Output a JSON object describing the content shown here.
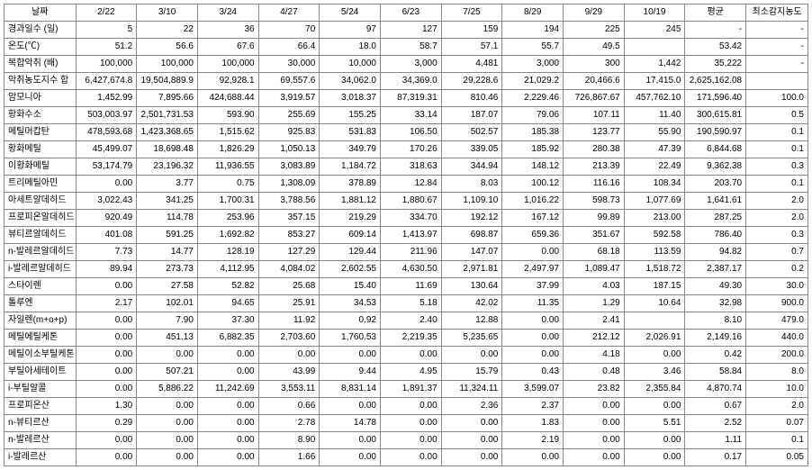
{
  "columns": [
    "날짜",
    "2/22",
    "3/10",
    "3/24",
    "4/27",
    "5/24",
    "6/23",
    "7/25",
    "8/29",
    "9/29",
    "10/19",
    "평균",
    "최소감지농도"
  ],
  "rows": [
    [
      "경과일수 (일)",
      "5",
      "22",
      "36",
      "70",
      "97",
      "127",
      "159",
      "194",
      "225",
      "245",
      "-",
      "-"
    ],
    [
      "온도(℃)",
      "51.2",
      "56.6",
      "67.6",
      "66.4",
      "18.0",
      "58.7",
      "57.1",
      "55.7",
      "49.5",
      "",
      "53.42",
      "-"
    ],
    [
      "복합악취 (배)",
      "100,000",
      "100,000",
      "100,000",
      "30,000",
      "10,000",
      "3,000",
      "4,481",
      "3,000",
      "300",
      "1,442",
      "35,222",
      "-"
    ],
    [
      "악취농도지수 합",
      "6,427,674.8",
      "19,504,889.9",
      "92,928.1",
      "69,557.6",
      "34,062.0",
      "34,369.0",
      "29,228.6",
      "21,029.2",
      "20,466.6",
      "17,415.0",
      "2,625,162.08",
      ""
    ],
    [
      "암모니아",
      "1,452.99",
      "7,895.66",
      "424,688.44",
      "3,919.57",
      "3,018.37",
      "87,319.31",
      "810.46",
      "2,229.46",
      "726,867.67",
      "457,762.10",
      "171,596.40",
      "100.0"
    ],
    [
      "황화수소",
      "503,003.97",
      "2,501,731.53",
      "593.90",
      "255.69",
      "155.25",
      "33.14",
      "187.07",
      "79.06",
      "107.11",
      "11.40",
      "300,615.81",
      "0.5"
    ],
    [
      "메틸머캅탄",
      "478,593.68",
      "1,423,368.65",
      "1,515.62",
      "925.83",
      "531.83",
      "106.50",
      "502.57",
      "185.38",
      "123.77",
      "55.90",
      "190,590.97",
      "0.1"
    ],
    [
      "황화메틸",
      "45,499.07",
      "18,698.48",
      "1,826.29",
      "1,050.13",
      "349.79",
      "170.26",
      "339.05",
      "185.92",
      "280.38",
      "47.39",
      "6,844.68",
      "0.1"
    ],
    [
      "이황화메틸",
      "53,174.79",
      "23,196.32",
      "11,936.55",
      "3,083.89",
      "1,184.72",
      "318.63",
      "344.94",
      "148.12",
      "213.39",
      "22.49",
      "9,362.38",
      "0.3"
    ],
    [
      "트리메틸아민",
      "0.00",
      "3.77",
      "0.75",
      "1,308.09",
      "378.89",
      "12.84",
      "8.03",
      "100.12",
      "116.16",
      "108.34",
      "203.70",
      "0.1"
    ],
    [
      "아세트알데히드",
      "3,022.43",
      "341.25",
      "1,700.31",
      "3,788.56",
      "1,881.12",
      "1,880.67",
      "1,109.10",
      "1,016.22",
      "598.73",
      "1,077.69",
      "1,641.61",
      "2.0"
    ],
    [
      "프로피온알데히드",
      "920.49",
      "114.78",
      "253.96",
      "357.15",
      "219.29",
      "334.70",
      "192.12",
      "167.12",
      "99.89",
      "213.00",
      "287.25",
      "2.0"
    ],
    [
      "뷰티르알데히드",
      "401.08",
      "591.25",
      "1,692.82",
      "853.27",
      "609.14",
      "1,413.97",
      "698.87",
      "659.36",
      "351.67",
      "592.58",
      "786.40",
      "0.3"
    ],
    [
      "n-발레르알데히드",
      "7.73",
      "14.77",
      "128.19",
      "127.29",
      "129.44",
      "211.96",
      "147.07",
      "0.00",
      "68.18",
      "113.59",
      "94.82",
      "0.7"
    ],
    [
      "i-발레르알데히드",
      "89.94",
      "273.73",
      "4,112.95",
      "4,084.02",
      "2,602.55",
      "4,630.50",
      "2,971.81",
      "2,497.97",
      "1,089.47",
      "1,518.72",
      "2,387.17",
      "0.2"
    ],
    [
      "스타이렌",
      "0.00",
      "27.58",
      "52.82",
      "25.68",
      "15.40",
      "11.69",
      "130.64",
      "37.99",
      "4.03",
      "187.15",
      "49.30",
      "30.0"
    ],
    [
      "톨루엔",
      "2.17",
      "102.01",
      "94.65",
      "25.91",
      "34.53",
      "5.18",
      "42.02",
      "11.35",
      "1.29",
      "10.64",
      "32.98",
      "900.0"
    ],
    [
      "자일렌(m+o+p)",
      "0.00",
      "7.90",
      "37.30",
      "11.92",
      "0.92",
      "2.40",
      "12.88",
      "0.00",
      "2.41",
      "",
      "8.10",
      "479.0"
    ],
    [
      "메틸에틸케톤",
      "0.00",
      "451.13",
      "6,882.35",
      "2,703.60",
      "1,760.53",
      "2,219.35",
      "5,235.65",
      "0.00",
      "212.12",
      "2,026.91",
      "2,149.16",
      "440.0"
    ],
    [
      "메틸이소부틸케톤",
      "0.00",
      "0.00",
      "0.00",
      "0.00",
      "0.00",
      "0.00",
      "0.00",
      "0.00",
      "4.18",
      "0.00",
      "0.42",
      "200.0"
    ],
    [
      "부틸아세테이트",
      "0.00",
      "507.21",
      "0.00",
      "43.99",
      "9.44",
      "4.95",
      "15.79",
      "0.43",
      "0.48",
      "3.46",
      "58.84",
      "8.0"
    ],
    [
      "i-부틸알콜",
      "0.00",
      "5,886.22",
      "11,242.69",
      "3,553.11",
      "8,831.14",
      "1,891.37",
      "11,324.11",
      "3,599.07",
      "23.82",
      "2,355.84",
      "4,870.74",
      "10.0"
    ],
    [
      "프로피온산",
      "1.30",
      "0.00",
      "0.00",
      "0.66",
      "0.00",
      "0.00",
      "2.36",
      "2.37",
      "0.00",
      "0.00",
      "0.67",
      "2.0"
    ],
    [
      "n-뷰티르산",
      "0.29",
      "0.00",
      "0.00",
      "2.78",
      "14.78",
      "0.00",
      "0.00",
      "1.83",
      "0.00",
      "5.51",
      "2.52",
      "0.07"
    ],
    [
      "n-발레르산",
      "0.00",
      "0.00",
      "0.00",
      "8.90",
      "0.00",
      "0.00",
      "0.00",
      "2.19",
      "0.00",
      "0.00",
      "1.11",
      "0.1"
    ],
    [
      "i-발레르산",
      "0.00",
      "0.00",
      "0.00",
      "1.66",
      "0.00",
      "0.00",
      "0.00",
      "0.00",
      "0.00",
      "0.00",
      "0.17",
      "0.05"
    ]
  ]
}
